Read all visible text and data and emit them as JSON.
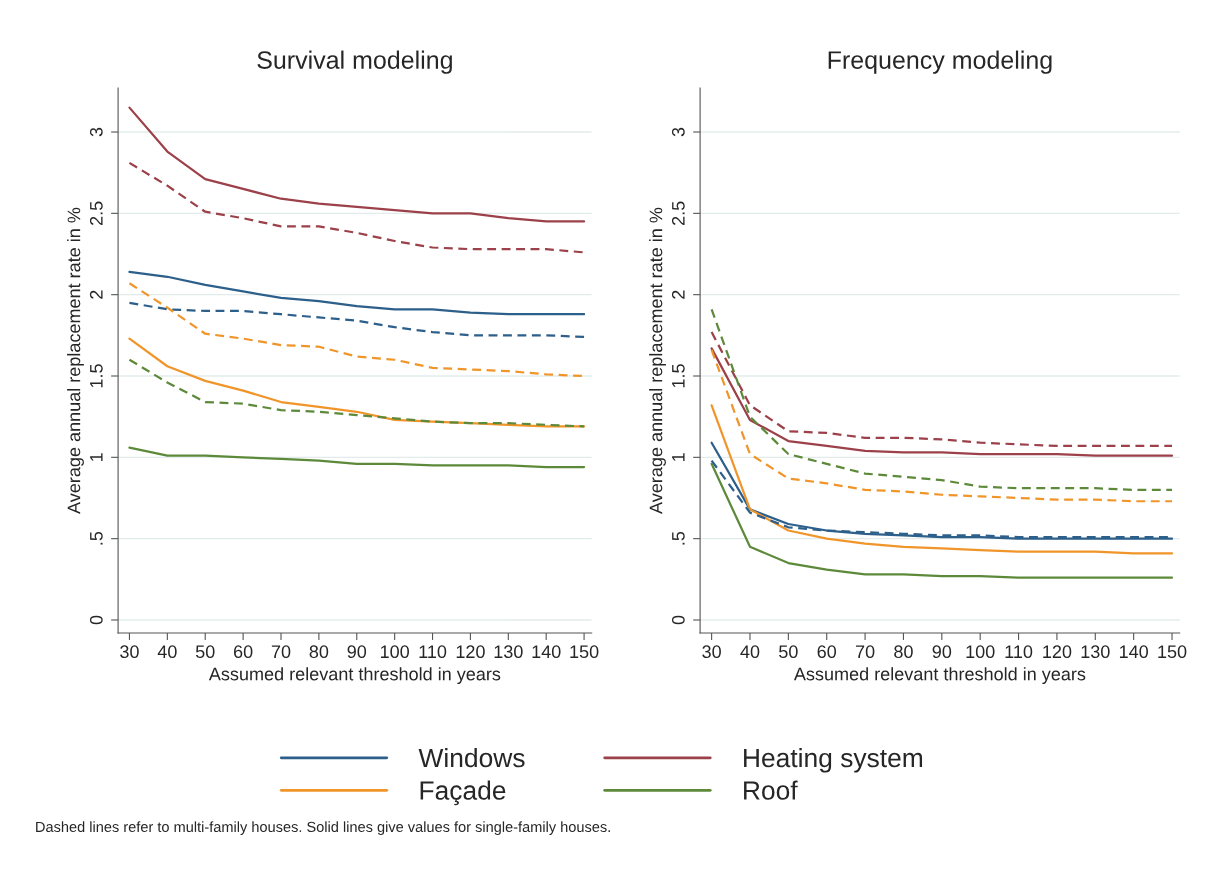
{
  "chart_data": [
    {
      "type": "line",
      "title": "Survival modeling",
      "xlabel": "Assumed relevant threshold in years",
      "ylabel": "Average annual replacement rate in %",
      "x": [
        30,
        40,
        50,
        60,
        70,
        80,
        90,
        100,
        110,
        120,
        130,
        140,
        150
      ],
      "xlim": [
        27,
        152
      ],
      "xticks": [
        30,
        40,
        50,
        60,
        70,
        80,
        90,
        100,
        110,
        120,
        130,
        140,
        150
      ],
      "ylim": [
        -0.08,
        3.27
      ],
      "yticks": [
        0,
        {
          "value": 0.5,
          "label": ".5"
        },
        1,
        1.5,
        2,
        2.5,
        3
      ],
      "grid": "y",
      "legend": "bottom",
      "marker": "none",
      "annotations": [
        "Dashed lines refer to multi-family houses. Solid lines give values for single-family houses."
      ],
      "series": [
        {
          "name": "Windows",
          "color": "#2d5f8b",
          "line_style": "solid",
          "values": [
            2.14,
            2.11,
            2.06,
            2.02,
            1.98,
            1.96,
            1.93,
            1.91,
            1.91,
            1.89,
            1.88,
            1.88,
            1.88
          ]
        },
        {
          "name": "Heating system",
          "color": "#9c4049",
          "line_style": "solid",
          "values": [
            3.15,
            2.88,
            2.71,
            2.65,
            2.59,
            2.56,
            2.54,
            2.52,
            2.5,
            2.5,
            2.47,
            2.45,
            2.45
          ]
        },
        {
          "name": "Façade",
          "color": "#f0952a",
          "line_style": "solid",
          "values": [
            1.73,
            1.56,
            1.47,
            1.41,
            1.34,
            1.31,
            1.28,
            1.23,
            1.22,
            1.21,
            1.2,
            1.19,
            1.19
          ]
        },
        {
          "name": "Roof",
          "color": "#5d8a3a",
          "line_style": "solid",
          "values": [
            1.06,
            1.01,
            1.01,
            1.0,
            0.99,
            0.98,
            0.96,
            0.96,
            0.95,
            0.95,
            0.95,
            0.94,
            0.94
          ]
        },
        {
          "color": "#2d5f8b",
          "line_style": "dashed",
          "values": [
            1.95,
            1.91,
            1.9,
            1.9,
            1.88,
            1.86,
            1.84,
            1.8,
            1.77,
            1.75,
            1.75,
            1.75,
            1.74
          ]
        },
        {
          "color": "#9c4049",
          "line_style": "dashed",
          "values": [
            2.81,
            2.67,
            2.51,
            2.47,
            2.42,
            2.42,
            2.38,
            2.33,
            2.29,
            2.28,
            2.28,
            2.28,
            2.26
          ]
        },
        {
          "color": "#f0952a",
          "line_style": "dashed",
          "values": [
            2.07,
            1.92,
            1.76,
            1.73,
            1.69,
            1.68,
            1.62,
            1.6,
            1.55,
            1.54,
            1.53,
            1.51,
            1.5
          ]
        },
        {
          "color": "#5d8a3a",
          "line_style": "dashed",
          "values": [
            1.6,
            1.46,
            1.34,
            1.33,
            1.29,
            1.28,
            1.26,
            1.24,
            1.22,
            1.21,
            1.21,
            1.2,
            1.19
          ]
        }
      ]
    },
    {
      "type": "line",
      "title": "Frequency modeling",
      "xlabel": "Assumed relevant threshold in years",
      "ylabel": "Average annual replacement rate in %",
      "x": [
        30,
        40,
        50,
        60,
        70,
        80,
        90,
        100,
        110,
        120,
        130,
        140,
        150
      ],
      "xlim": [
        27,
        152
      ],
      "xticks": [
        30,
        40,
        50,
        60,
        70,
        80,
        90,
        100,
        110,
        120,
        130,
        140,
        150
      ],
      "ylim": [
        -0.08,
        3.27
      ],
      "yticks": [
        0,
        {
          "value": 0.5,
          "label": ".5"
        },
        1,
        1.5,
        2,
        2.5,
        3
      ],
      "grid": "y",
      "marker": "none",
      "series": [
        {
          "color": "#2d5f8b",
          "line_style": "solid",
          "values": [
            1.09,
            0.68,
            0.59,
            0.55,
            0.53,
            0.52,
            0.51,
            0.51,
            0.5,
            0.5,
            0.5,
            0.5,
            0.5
          ]
        },
        {
          "color": "#9c4049",
          "line_style": "solid",
          "values": [
            1.67,
            1.23,
            1.1,
            1.07,
            1.04,
            1.03,
            1.03,
            1.02,
            1.02,
            1.02,
            1.01,
            1.01,
            1.01
          ]
        },
        {
          "color": "#f0952a",
          "line_style": "solid",
          "values": [
            1.32,
            0.68,
            0.55,
            0.5,
            0.47,
            0.45,
            0.44,
            0.43,
            0.42,
            0.42,
            0.42,
            0.41,
            0.41
          ]
        },
        {
          "color": "#5d8a3a",
          "line_style": "solid",
          "values": [
            0.96,
            0.45,
            0.35,
            0.31,
            0.28,
            0.28,
            0.27,
            0.27,
            0.26,
            0.26,
            0.26,
            0.26,
            0.26
          ]
        },
        {
          "color": "#2d5f8b",
          "line_style": "dashed",
          "values": [
            0.98,
            0.66,
            0.57,
            0.55,
            0.54,
            0.53,
            0.52,
            0.52,
            0.51,
            0.51,
            0.51,
            0.51,
            0.51
          ]
        },
        {
          "color": "#9c4049",
          "line_style": "dashed",
          "values": [
            1.77,
            1.32,
            1.16,
            1.15,
            1.12,
            1.12,
            1.11,
            1.09,
            1.08,
            1.07,
            1.07,
            1.07,
            1.07
          ]
        },
        {
          "color": "#f0952a",
          "line_style": "dashed",
          "values": [
            1.66,
            1.02,
            0.87,
            0.84,
            0.8,
            0.79,
            0.77,
            0.76,
            0.75,
            0.74,
            0.74,
            0.73,
            0.73
          ]
        },
        {
          "color": "#5d8a3a",
          "line_style": "dashed",
          "values": [
            1.91,
            1.25,
            1.02,
            0.96,
            0.9,
            0.88,
            0.86,
            0.82,
            0.81,
            0.81,
            0.81,
            0.8,
            0.8
          ]
        }
      ]
    }
  ]
}
